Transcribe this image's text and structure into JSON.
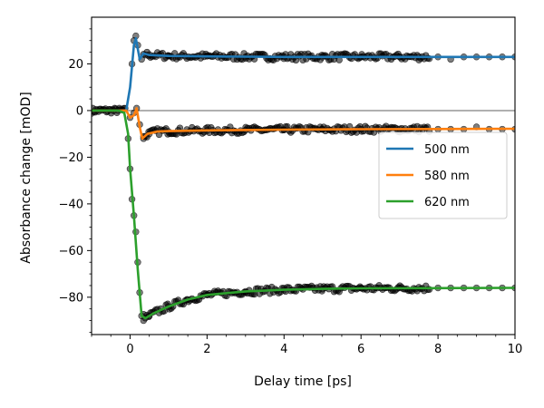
{
  "chart_data": {
    "type": "line",
    "xlabel": "Delay time [ps]",
    "ylabel": "Absorbance change [mOD]",
    "xlim": [
      -1,
      10
    ],
    "ylim": [
      -96,
      40
    ],
    "x_ticks": [
      0,
      2,
      4,
      6,
      8,
      10
    ],
    "y_ticks": [
      -80,
      -60,
      -40,
      -20,
      0,
      20
    ],
    "zero_line": true,
    "grid": false,
    "legend_position": "center-right",
    "series": [
      {
        "name": "500 nm",
        "color": "#1f77b4",
        "fit": [
          [
            -1.0,
            0
          ],
          [
            -0.1,
            0
          ],
          [
            0.0,
            10
          ],
          [
            0.1,
            28
          ],
          [
            0.15,
            31
          ],
          [
            0.25,
            22
          ],
          [
            0.35,
            24.5
          ],
          [
            0.5,
            23.8
          ],
          [
            1.0,
            23.4
          ],
          [
            2.0,
            23.2
          ],
          [
            4.0,
            23.0
          ],
          [
            6.0,
            23.0
          ],
          [
            7.9,
            23.0
          ],
          [
            10.0,
            23.0
          ]
        ],
        "data": [
          [
            0.05,
            20
          ],
          [
            0.1,
            30
          ],
          [
            0.15,
            32
          ],
          [
            0.2,
            28
          ],
          [
            0.3,
            22
          ],
          [
            0.5,
            24
          ],
          [
            1.0,
            23.5
          ],
          [
            2.0,
            23.3
          ],
          [
            3.0,
            23.0
          ],
          [
            4.0,
            23.1
          ],
          [
            5.0,
            22.9
          ],
          [
            6.0,
            23.0
          ],
          [
            7.0,
            23.1
          ],
          [
            7.5,
            23.0
          ],
          [
            8.0,
            23
          ],
          [
            8.33,
            22
          ],
          [
            8.67,
            23
          ],
          [
            9.0,
            23
          ],
          [
            9.33,
            23
          ],
          [
            9.67,
            23
          ],
          [
            10.0,
            23
          ]
        ]
      },
      {
        "name": "580 nm",
        "color": "#ff7f0e",
        "fit": [
          [
            -1.0,
            0
          ],
          [
            -0.1,
            0
          ],
          [
            0.0,
            -3
          ],
          [
            0.1,
            -2
          ],
          [
            0.17,
            1
          ],
          [
            0.25,
            -7
          ],
          [
            0.32,
            -12
          ],
          [
            0.45,
            -10
          ],
          [
            0.7,
            -9
          ],
          [
            1.0,
            -8.8
          ],
          [
            2.0,
            -8.5
          ],
          [
            4.0,
            -8.2
          ],
          [
            6.0,
            -8.0
          ],
          [
            7.9,
            -7.9
          ],
          [
            10.0,
            -7.8
          ]
        ],
        "data": [
          [
            0.0,
            -3
          ],
          [
            0.1,
            -1
          ],
          [
            0.17,
            1
          ],
          [
            0.25,
            -6
          ],
          [
            0.35,
            -12
          ],
          [
            0.5,
            -10
          ],
          [
            1.0,
            -9
          ],
          [
            2.0,
            -8.6
          ],
          [
            3.0,
            -8.4
          ],
          [
            4.0,
            -8.3
          ],
          [
            5.0,
            -8.1
          ],
          [
            6.0,
            -8.0
          ],
          [
            7.0,
            -7.9
          ],
          [
            8.0,
            -8
          ],
          [
            8.33,
            -8
          ],
          [
            8.67,
            -8
          ],
          [
            9.0,
            -7
          ],
          [
            9.33,
            -8
          ],
          [
            9.67,
            -8
          ],
          [
            10.0,
            -8
          ]
        ]
      },
      {
        "name": "620 nm",
        "color": "#2ca02c",
        "fit": [
          [
            -1.0,
            0
          ],
          [
            -0.3,
            0
          ],
          [
            -0.15,
            -1
          ],
          [
            -0.05,
            -10
          ],
          [
            0.0,
            -25
          ],
          [
            0.1,
            -45
          ],
          [
            0.2,
            -68
          ],
          [
            0.3,
            -88
          ],
          [
            0.4,
            -89
          ],
          [
            0.6,
            -87
          ],
          [
            1.0,
            -84
          ],
          [
            1.5,
            -81
          ],
          [
            2.0,
            -79
          ],
          [
            3.0,
            -77.5
          ],
          [
            4.0,
            -76.8
          ],
          [
            5.0,
            -76.4
          ],
          [
            6.0,
            -76.2
          ],
          [
            7.9,
            -76.1
          ],
          [
            10.0,
            -76.0
          ]
        ],
        "data": [
          [
            -0.05,
            -12
          ],
          [
            0.0,
            -25
          ],
          [
            0.05,
            -38
          ],
          [
            0.1,
            -45
          ],
          [
            0.15,
            -52
          ],
          [
            0.2,
            -65
          ],
          [
            0.25,
            -78
          ],
          [
            0.3,
            -88
          ],
          [
            0.35,
            -90
          ],
          [
            0.5,
            -88
          ],
          [
            1.0,
            -84
          ],
          [
            1.5,
            -81
          ],
          [
            2.0,
            -79
          ],
          [
            3.0,
            -77.5
          ],
          [
            4.0,
            -77
          ],
          [
            5.0,
            -76.5
          ],
          [
            6.0,
            -76
          ],
          [
            7.0,
            -76
          ],
          [
            8.0,
            -76
          ],
          [
            8.33,
            -76
          ],
          [
            8.67,
            -76
          ],
          [
            9.0,
            -76
          ],
          [
            9.33,
            -76
          ],
          [
            9.67,
            -76
          ],
          [
            10.0,
            -76
          ]
        ]
      }
    ]
  }
}
